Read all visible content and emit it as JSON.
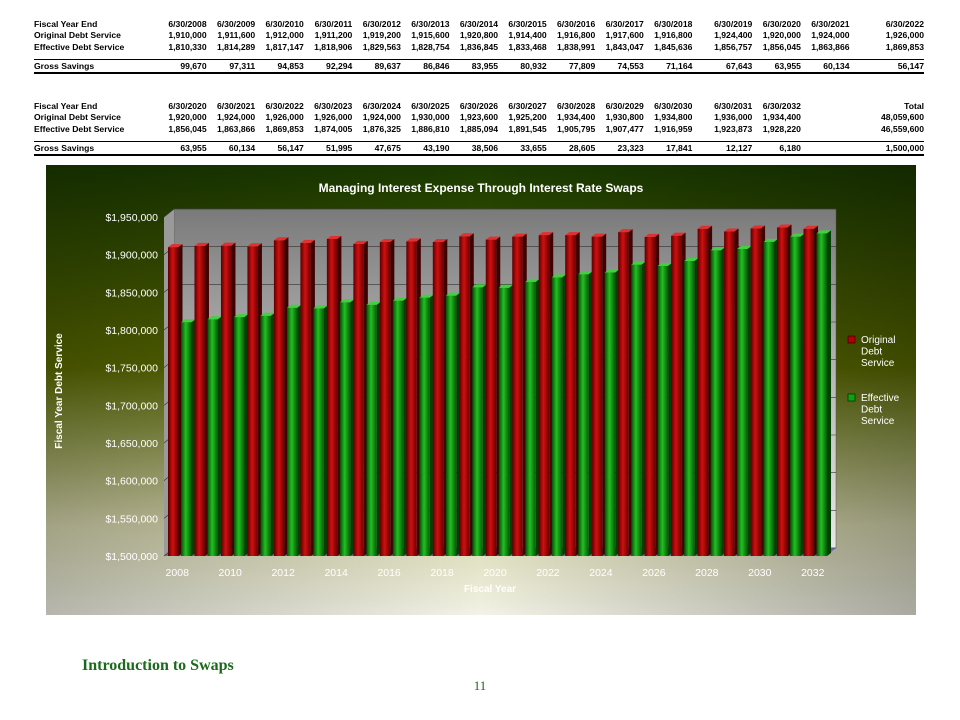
{
  "tables": [
    {
      "headers": [
        "Fiscal Year End",
        "6/30/2008",
        "6/30/2009",
        "6/30/2010",
        "6/30/2011",
        "6/30/2012",
        "6/30/2013",
        "6/30/2014",
        "6/30/2015",
        "6/30/2016",
        "6/30/2017",
        "6/30/2018",
        "6/30/2019",
        "6/30/2020",
        "6/30/2021",
        "6/30/2022"
      ],
      "rows": [
        [
          "Original Debt Service",
          "1,910,000",
          "1,911,600",
          "1,912,000",
          "1,911,200",
          "1,919,200",
          "1,915,600",
          "1,920,800",
          "1,914,400",
          "1,916,800",
          "1,917,600",
          "1,916,800",
          "1,924,400",
          "1,920,000",
          "1,924,000",
          "1,926,000"
        ],
        [
          "Effective Debt Service",
          "1,810,330",
          "1,814,289",
          "1,817,147",
          "1,818,906",
          "1,829,563",
          "1,828,754",
          "1,836,845",
          "1,833,468",
          "1,838,991",
          "1,843,047",
          "1,845,636",
          "1,856,757",
          "1,856,045",
          "1,863,866",
          "1,869,853"
        ]
      ],
      "savings": [
        "Gross Savings",
        "99,670",
        "97,311",
        "94,853",
        "92,294",
        "89,637",
        "86,846",
        "83,955",
        "80,932",
        "77,809",
        "74,553",
        "71,164",
        "67,643",
        "63,955",
        "60,134",
        "56,147"
      ]
    },
    {
      "headers": [
        "Fiscal Year End",
        "6/30/2020",
        "6/30/2021",
        "6/30/2022",
        "6/30/2023",
        "6/30/2024",
        "6/30/2025",
        "6/30/2026",
        "6/30/2027",
        "6/30/2028",
        "6/30/2029",
        "6/30/2030",
        "6/30/2031",
        "6/30/2032",
        "",
        "Total"
      ],
      "rows": [
        [
          "Original Debt Service",
          "1,920,000",
          "1,924,000",
          "1,926,000",
          "1,926,000",
          "1,924,000",
          "1,930,000",
          "1,923,600",
          "1,925,200",
          "1,934,400",
          "1,930,800",
          "1,934,800",
          "1,936,000",
          "1,934,400",
          "",
          "48,059,600"
        ],
        [
          "Effective Debt Service",
          "1,856,045",
          "1,863,866",
          "1,869,853",
          "1,874,005",
          "1,876,325",
          "1,886,810",
          "1,885,094",
          "1,891,545",
          "1,905,795",
          "1,907,477",
          "1,916,959",
          "1,923,873",
          "1,928,220",
          "",
          "46,559,600"
        ]
      ],
      "savings": [
        "Gross Savings",
        "63,955",
        "60,134",
        "56,147",
        "51,995",
        "47,675",
        "43,190",
        "38,506",
        "33,655",
        "28,605",
        "23,323",
        "17,841",
        "12,127",
        "6,180",
        "",
        "1,500,000"
      ]
    }
  ],
  "chart_data": {
    "type": "bar",
    "title": "Managing Interest Expense Through Interest Rate Swaps",
    "xlabel": "Fiscal Year",
    "ylabel": "Fiscal Year Debt Service",
    "ylim": [
      1500000,
      1950000
    ],
    "yticks": [
      "$1,500,000",
      "$1,550,000",
      "$1,600,000",
      "$1,650,000",
      "$1,700,000",
      "$1,750,000",
      "$1,800,000",
      "$1,850,000",
      "$1,900,000",
      "$1,950,000"
    ],
    "xtick_labels": [
      "2008",
      "2010",
      "2012",
      "2014",
      "2016",
      "2018",
      "2020",
      "2022",
      "2024",
      "2026",
      "2028",
      "2030",
      "2032"
    ],
    "categories": [
      "2008",
      "2009",
      "2010",
      "2011",
      "2012",
      "2013",
      "2014",
      "2015",
      "2016",
      "2017",
      "2018",
      "2019",
      "2020",
      "2021",
      "2022",
      "2023",
      "2024",
      "2025",
      "2026",
      "2027",
      "2028",
      "2029",
      "2030",
      "2031",
      "2032"
    ],
    "legend_position": "right",
    "series": [
      {
        "name": "Original Debt Service",
        "color": "#b00000",
        "values": [
          1910000,
          1911600,
          1912000,
          1911200,
          1919200,
          1915600,
          1920800,
          1914400,
          1916800,
          1917600,
          1916800,
          1924400,
          1920000,
          1924000,
          1926000,
          1926000,
          1924000,
          1930000,
          1923600,
          1925200,
          1934400,
          1930800,
          1934800,
          1936000,
          1934400
        ]
      },
      {
        "name": "Effective Debt Service",
        "color": "#10a010",
        "values": [
          1810330,
          1814289,
          1817147,
          1818906,
          1829563,
          1828754,
          1836845,
          1833468,
          1838991,
          1843047,
          1845636,
          1856757,
          1856045,
          1863866,
          1869853,
          1874005,
          1876325,
          1886810,
          1885094,
          1891545,
          1905795,
          1907477,
          1916959,
          1923873,
          1928220
        ]
      }
    ],
    "legend_labels": [
      [
        "Original",
        "Debt",
        "Service"
      ],
      [
        "Effective",
        "Debt",
        "Service"
      ]
    ]
  },
  "footer": {
    "title": "Introduction to Swaps",
    "page": "11"
  }
}
